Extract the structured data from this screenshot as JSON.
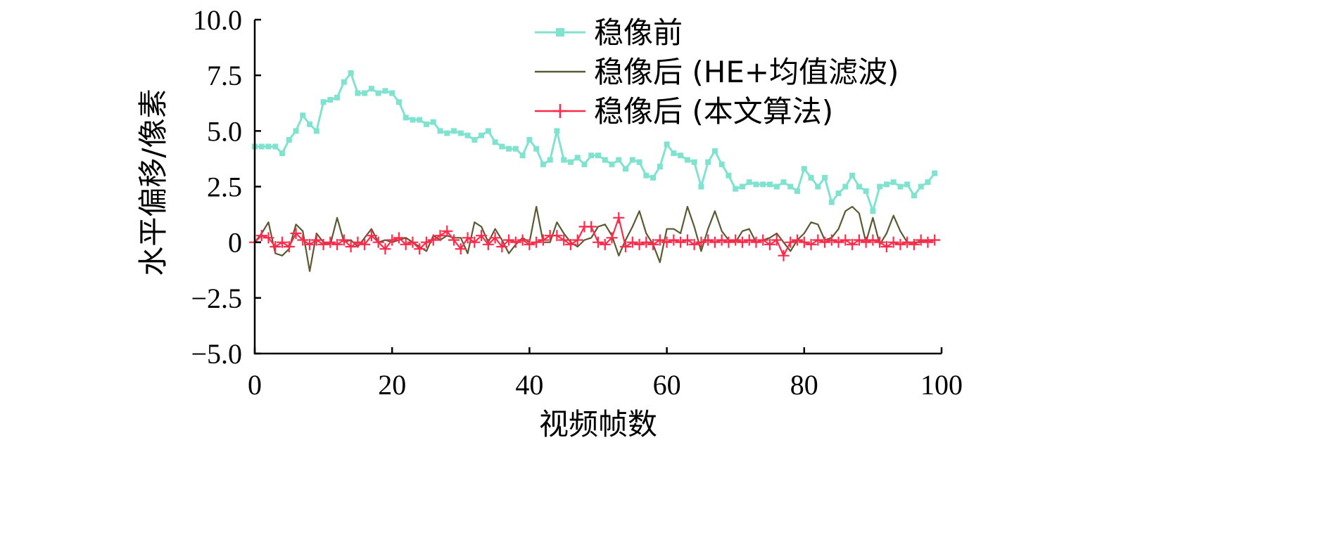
{
  "chart_data": {
    "type": "line",
    "xlabel": "视频帧数",
    "ylabel": "水平偏移/像素",
    "xlim": [
      0,
      100
    ],
    "ylim": [
      -5.0,
      10.0
    ],
    "x_ticks": [
      "0",
      "20",
      "40",
      "60",
      "80",
      "100"
    ],
    "y_ticks": [
      "−5.0",
      "−2.5",
      "0",
      "2.5",
      "5.0",
      "7.5",
      "10.0"
    ],
    "grid": false,
    "legend_position": "top-right",
    "series": [
      {
        "name": "稳像前",
        "color": "#7fe3cf",
        "marker": "square",
        "values": [
          4.3,
          4.3,
          4.3,
          4.3,
          4.0,
          4.6,
          5.0,
          5.7,
          5.3,
          5.0,
          6.3,
          6.4,
          6.5,
          7.2,
          7.6,
          6.7,
          6.7,
          6.9,
          6.7,
          6.8,
          6.7,
          6.3,
          5.6,
          5.5,
          5.5,
          5.3,
          5.4,
          5.0,
          4.9,
          5.0,
          4.9,
          4.8,
          4.6,
          4.8,
          5.0,
          4.5,
          4.3,
          4.2,
          4.2,
          3.9,
          4.6,
          4.2,
          3.5,
          3.7,
          5.0,
          3.7,
          3.6,
          3.8,
          3.5,
          3.9,
          3.9,
          3.7,
          3.5,
          3.7,
          3.3,
          3.7,
          3.6,
          3.0,
          2.9,
          3.4,
          4.4,
          4.0,
          3.9,
          3.7,
          3.6,
          2.5,
          3.6,
          4.1,
          3.5,
          3.0,
          2.4,
          2.5,
          2.7,
          2.6,
          2.6,
          2.6,
          2.5,
          2.7,
          2.5,
          2.3,
          3.3,
          2.9,
          2.5,
          2.9,
          1.8,
          2.2,
          2.5,
          3.0,
          2.5,
          2.3,
          1.4,
          2.5,
          2.6,
          2.7,
          2.5,
          2.6,
          2.1,
          2.5,
          2.7,
          3.1
        ]
      },
      {
        "name": "稳像后 (HE+均值滤波)",
        "color": "#5a5a32",
        "marker": "none",
        "values": [
          0.0,
          0.4,
          0.9,
          -0.5,
          -0.6,
          -0.3,
          0.8,
          0.5,
          -1.3,
          0.4,
          0.0,
          -0.1,
          1.1,
          0.0,
          0.1,
          -0.2,
          0.2,
          0.6,
          0.0,
          0.1,
          0.0,
          0.1,
          0.2,
          0.0,
          -0.2,
          -0.4,
          0.3,
          0.1,
          0.3,
          0.2,
          0.2,
          -0.5,
          0.9,
          0.7,
          0.0,
          0.6,
          0.1,
          -0.5,
          -0.1,
          0.2,
          0.0,
          1.6,
          0.0,
          0.0,
          0.9,
          0.4,
          0.0,
          -0.2,
          0.1,
          0.2,
          0.7,
          0.8,
          0.3,
          -0.6,
          0.1,
          0.7,
          1.4,
          0.4,
          -0.1,
          -0.9,
          0.6,
          0.6,
          0.4,
          1.6,
          0.7,
          -0.4,
          0.6,
          1.4,
          0.5,
          0.1,
          0.0,
          0.5,
          0.6,
          0.0,
          0.1,
          0.2,
          0.4,
          0.0,
          -0.4,
          0.1,
          0.4,
          0.9,
          0.8,
          0.1,
          0.2,
          0.6,
          1.4,
          1.6,
          1.3,
          0.0,
          1.1,
          -0.1,
          0.4,
          1.2,
          0.5,
          0.0,
          0.0,
          0.0,
          0.1,
          0.1
        ]
      },
      {
        "name": "稳像后 (本文算法)",
        "color": "#ff2a4a",
        "marker": "plus",
        "values": [
          0.0,
          0.3,
          0.2,
          -0.2,
          0.0,
          -0.2,
          0.4,
          0.1,
          -0.1,
          0.1,
          -0.1,
          0.0,
          -0.1,
          0.1,
          -0.2,
          0.0,
          -0.1,
          0.3,
          0.0,
          -0.3,
          0.1,
          0.2,
          -0.1,
          0.0,
          -0.3,
          0.0,
          0.1,
          0.3,
          0.5,
          0.1,
          -0.3,
          0.2,
          0.0,
          0.3,
          -0.1,
          0.2,
          -0.2,
          0.1,
          0.0,
          0.1,
          -0.1,
          0.0,
          0.1,
          0.3,
          0.3,
          0.1,
          -0.1,
          0.1,
          0.7,
          0.7,
          0.0,
          -0.1,
          0.2,
          1.1,
          -0.2,
          0.0,
          -0.1,
          0.0,
          -0.1,
          0.1,
          0.0,
          0.1,
          0.0,
          0.1,
          -0.1,
          0.0,
          0.1,
          0.0,
          0.1,
          0.0,
          0.1,
          0.0,
          0.1,
          0.0,
          0.1,
          -0.1,
          0.1,
          -0.6,
          0.0,
          0.1,
          0.0,
          -0.1,
          0.1,
          0.0,
          0.1,
          0.0,
          0.1,
          -0.1,
          0.1,
          0.0,
          0.1,
          0.0,
          -0.2,
          0.0,
          -0.1,
          0.0,
          -0.1,
          0.1,
          0.0,
          0.1
        ]
      }
    ]
  }
}
